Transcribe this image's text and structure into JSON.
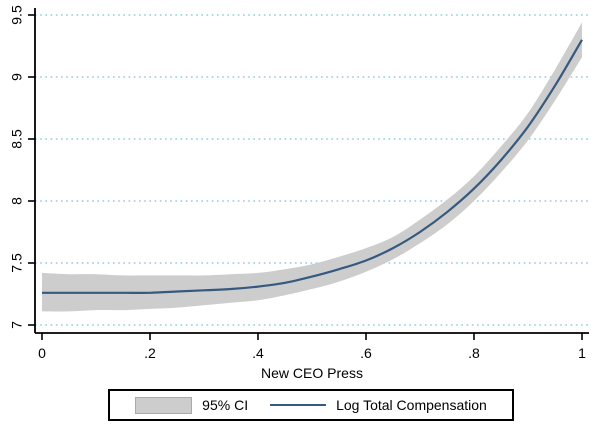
{
  "figure": {
    "background": "#ffffff"
  },
  "axes": {
    "x": {
      "label": "New CEO Press",
      "ticks": [
        {
          "value": 0.0,
          "label": "0"
        },
        {
          "value": 0.2,
          "label": ".2"
        },
        {
          "value": 0.4,
          "label": ".4"
        },
        {
          "value": 0.6,
          "label": ".6"
        },
        {
          "value": 0.8,
          "label": ".8"
        },
        {
          "value": 1.0,
          "label": "1"
        }
      ]
    },
    "y": {
      "ticks": [
        {
          "value": 9.5,
          "label": "9.5"
        },
        {
          "value": 9.0,
          "label": "9"
        },
        {
          "value": 8.5,
          "label": "8.5"
        },
        {
          "value": 8.0,
          "label": "8"
        },
        {
          "value": 7.5,
          "label": "7.5"
        },
        {
          "value": 7.0,
          "label": "7"
        }
      ]
    }
  },
  "legend": {
    "items": [
      {
        "swatch": "band",
        "label": "95% CI"
      },
      {
        "swatch": "line",
        "label": "Log Total Compensation"
      }
    ]
  },
  "colors": {
    "band": "#cdcdcd",
    "band_border": "#aaaaaa",
    "line": "#35597f",
    "grid": "#8ecbe2",
    "axis": "#000000",
    "text": "#000000"
  },
  "chart_data": {
    "type": "line",
    "title": "",
    "xlabel": "New CEO Press",
    "ylabel": "",
    "xlim": [
      0,
      1
    ],
    "ylim": [
      7,
      9.5
    ],
    "grid": "horizontal dotted light-blue",
    "legend_position": "bottom",
    "x": [
      0,
      0.05,
      0.1,
      0.15,
      0.2,
      0.25,
      0.3,
      0.35,
      0.4,
      0.45,
      0.5,
      0.55,
      0.6,
      0.65,
      0.7,
      0.75,
      0.8,
      0.85,
      0.9,
      0.95,
      1.0
    ],
    "series": [
      {
        "name": "Log Total Compensation",
        "type": "line",
        "values": [
          7.26,
          7.26,
          7.26,
          7.26,
          7.26,
          7.27,
          7.28,
          7.29,
          7.31,
          7.34,
          7.39,
          7.45,
          7.52,
          7.62,
          7.75,
          7.91,
          8.1,
          8.33,
          8.6,
          8.93,
          9.3
        ]
      },
      {
        "name": "95% CI lower",
        "type": "band-lower",
        "values": [
          7.11,
          7.11,
          7.12,
          7.12,
          7.13,
          7.14,
          7.16,
          7.18,
          7.2,
          7.24,
          7.29,
          7.35,
          7.43,
          7.53,
          7.66,
          7.81,
          8.0,
          8.23,
          8.49,
          8.81,
          9.16
        ]
      },
      {
        "name": "95% CI upper",
        "type": "band-upper",
        "values": [
          7.42,
          7.41,
          7.41,
          7.4,
          7.4,
          7.4,
          7.4,
          7.41,
          7.42,
          7.45,
          7.49,
          7.55,
          7.62,
          7.71,
          7.85,
          8.01,
          8.2,
          8.44,
          8.71,
          9.06,
          9.44
        ]
      }
    ]
  }
}
